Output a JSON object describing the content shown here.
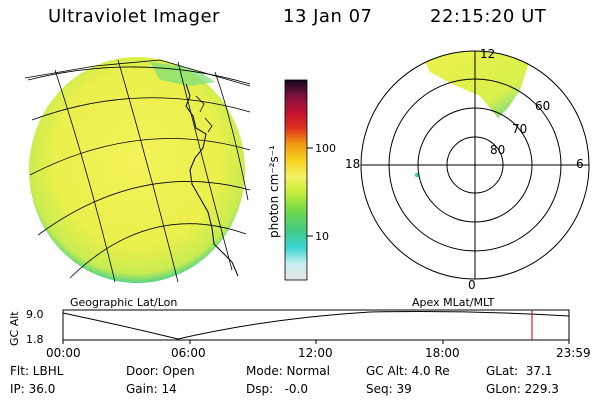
{
  "header": {
    "title": "Ultraviolet Imager",
    "date": "13 Jan 07",
    "time": "22:15:20 UT"
  },
  "colorbar": {
    "unit_label": "photon cm⁻²s⁻¹",
    "ticks": [
      "100",
      "10"
    ]
  },
  "polar": {
    "mlt_labels": [
      "12",
      "18",
      "6",
      "0"
    ],
    "mlat_labels": [
      "60",
      "70",
      "80"
    ]
  },
  "panel_labels": {
    "left": "Geographic Lat/Lon",
    "right": "Apex MLat/MLT"
  },
  "timeline": {
    "axis_label": "GC Alt",
    "y_ticks": [
      "9.0",
      "1.8"
    ],
    "x_ticks": [
      "00:00",
      "06:00",
      "12:00",
      "18:00",
      "23:59"
    ],
    "current_time_marker": "22:15"
  },
  "info": {
    "filter": "Flt: LBHL",
    "ip": "IP: 36.0",
    "door": "Door: Open",
    "gain": "Gain: 14",
    "mode": "Mode: Normal",
    "dsp": "Dsp:   -0.0",
    "gc_alt": "GC Alt: 4.0 Re",
    "seq": "Seq: 39",
    "glat": "GLat:  37.1",
    "glon": "GLon: 229.3"
  },
  "colors": {
    "image_fill": "#eef24e",
    "image_edge": "#49d77d",
    "marker": "#cc0000"
  }
}
